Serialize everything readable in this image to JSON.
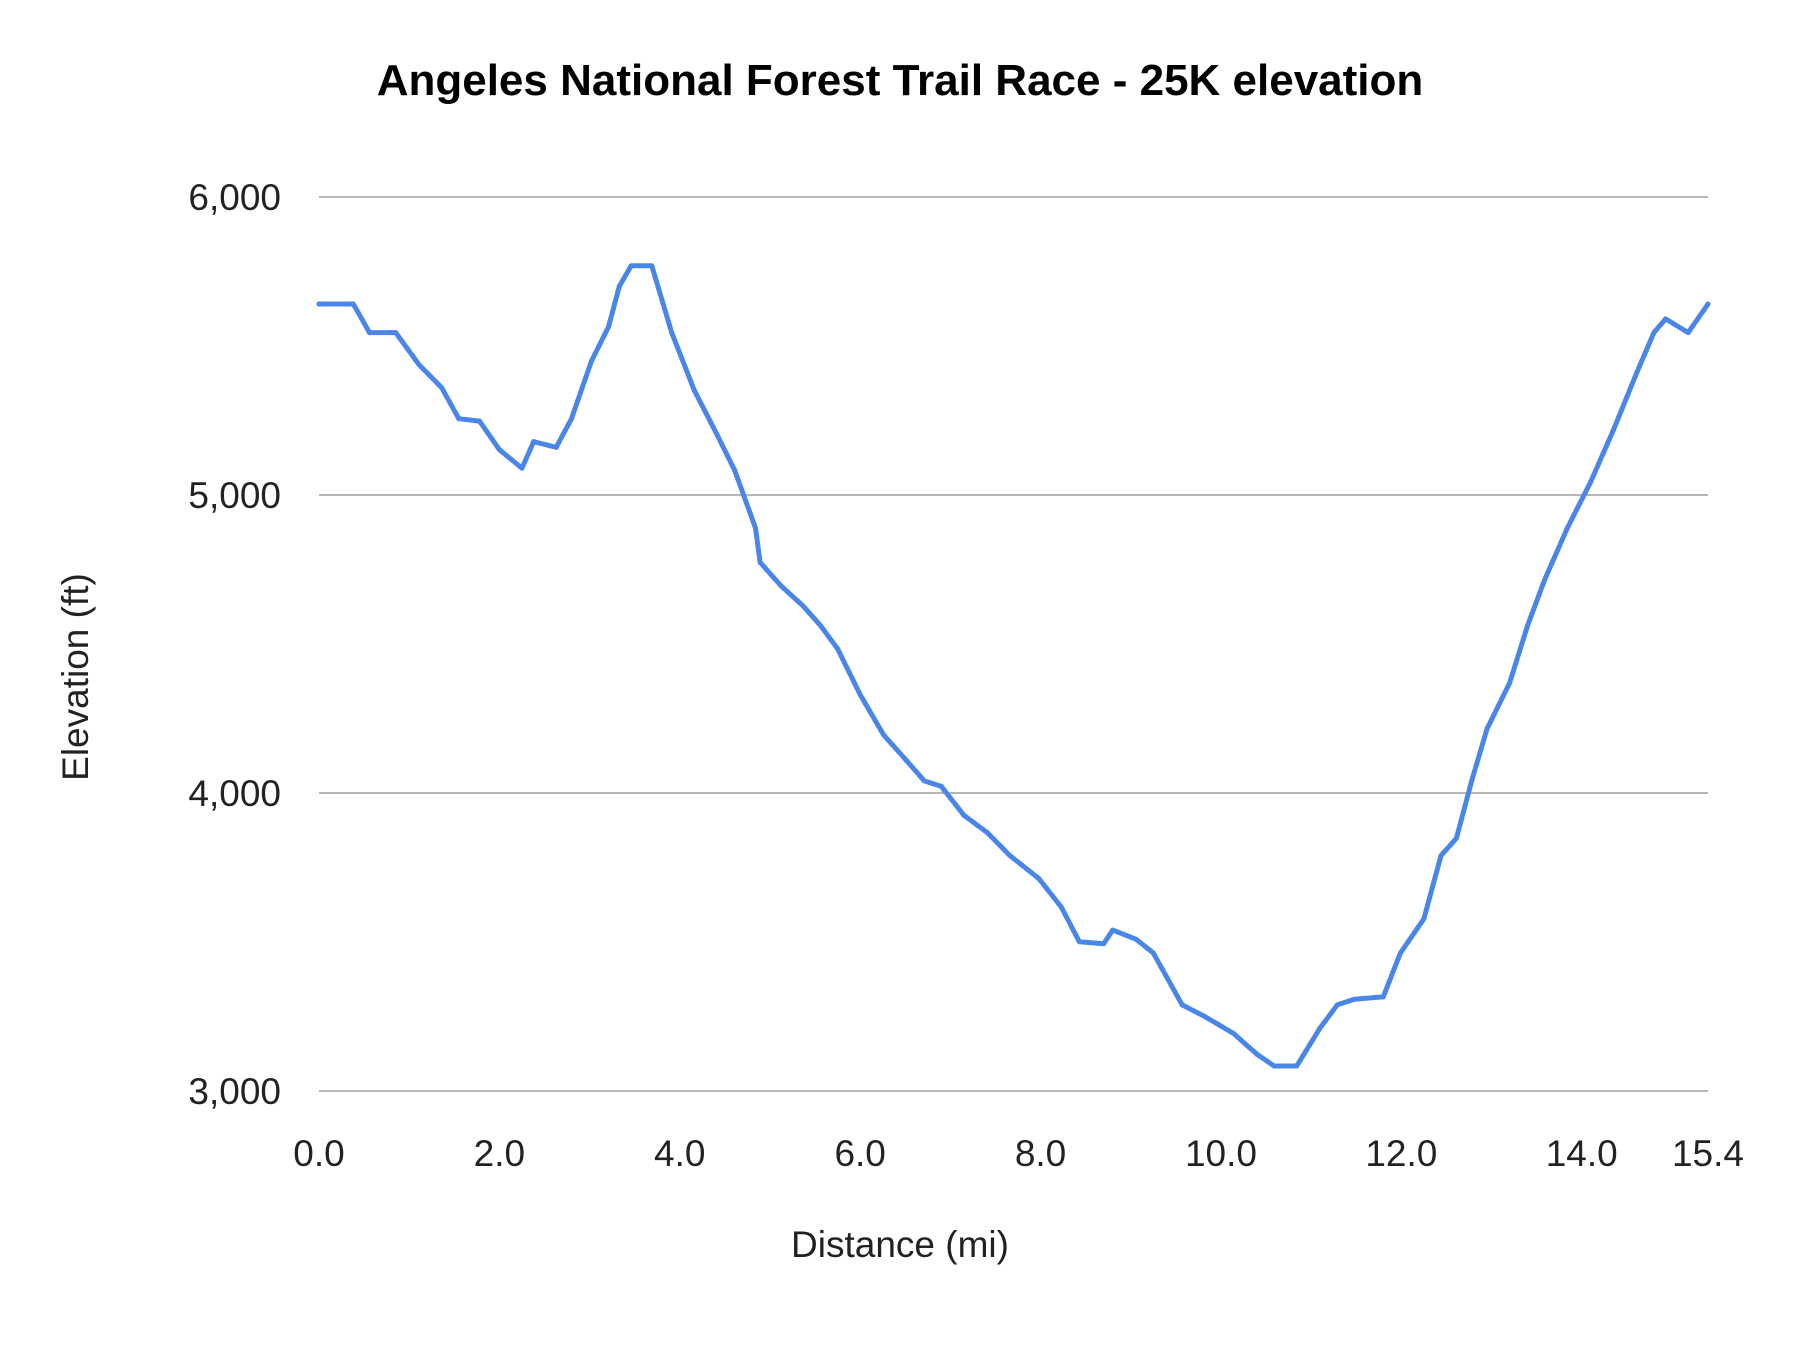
{
  "chart_data": {
    "type": "line",
    "title": "Angeles National Forest Trail Race - 25K elevation",
    "xlabel": "Distance (mi)",
    "ylabel": "Elevation (ft)",
    "xlim": [
      0,
      15.4
    ],
    "ylim": [
      3000,
      6000
    ],
    "x_ticks": [
      "0.0",
      "2.0",
      "4.0",
      "6.0",
      "8.0",
      "10.0",
      "12.0",
      "14.0",
      "15.4"
    ],
    "x_tick_values": [
      0,
      2,
      4,
      6,
      8,
      10,
      12,
      14,
      15.4
    ],
    "y_ticks": [
      "3,000",
      "4,000",
      "5,000",
      "6,000"
    ],
    "y_tick_values": [
      3000,
      4000,
      5000,
      6000
    ],
    "grid": "horizontal",
    "legend": "none",
    "color": "#4a86e8",
    "series": [
      {
        "x": [
          0.0,
          0.38,
          0.56,
          0.85,
          1.11,
          1.36,
          1.55,
          1.78,
          2.0,
          2.25,
          2.38,
          2.63,
          2.8,
          3.02,
          3.21,
          3.33,
          3.46,
          3.69,
          3.91,
          4.16,
          4.42,
          4.61,
          4.84,
          4.89,
          5.12,
          5.37,
          5.56,
          5.75,
          6.0,
          6.26,
          6.51,
          6.71,
          6.9,
          7.15,
          7.41,
          7.66,
          7.98,
          8.23,
          8.43,
          8.7,
          8.8,
          9.06,
          9.25,
          9.57,
          9.82,
          10.14,
          10.4,
          10.59,
          10.84,
          11.1,
          11.29,
          11.48,
          11.8,
          11.99,
          12.25,
          12.44,
          12.61,
          12.78,
          12.95,
          13.2,
          13.4,
          13.59,
          13.84,
          14.1,
          14.35,
          14.61,
          14.8,
          14.93,
          15.18,
          15.4
        ],
        "y": [
          5641,
          5641,
          5545,
          5545,
          5437,
          5360,
          5256,
          5248,
          5152,
          5090,
          5179,
          5160,
          5256,
          5449,
          5564,
          5700,
          5769,
          5769,
          5545,
          5352,
          5198,
          5082,
          4889,
          4774,
          4696,
          4627,
          4562,
          4484,
          4330,
          4195,
          4110,
          4041,
          4022,
          3925,
          3867,
          3790,
          3713,
          3617,
          3501,
          3494,
          3540,
          3509,
          3463,
          3289,
          3250,
          3193,
          3123,
          3084,
          3084,
          3212,
          3289,
          3308,
          3316,
          3463,
          3578,
          3790,
          3848,
          4041,
          4215,
          4369,
          4562,
          4716,
          4889,
          5044,
          5217,
          5410,
          5545,
          5591,
          5545,
          5641
        ]
      }
    ]
  }
}
